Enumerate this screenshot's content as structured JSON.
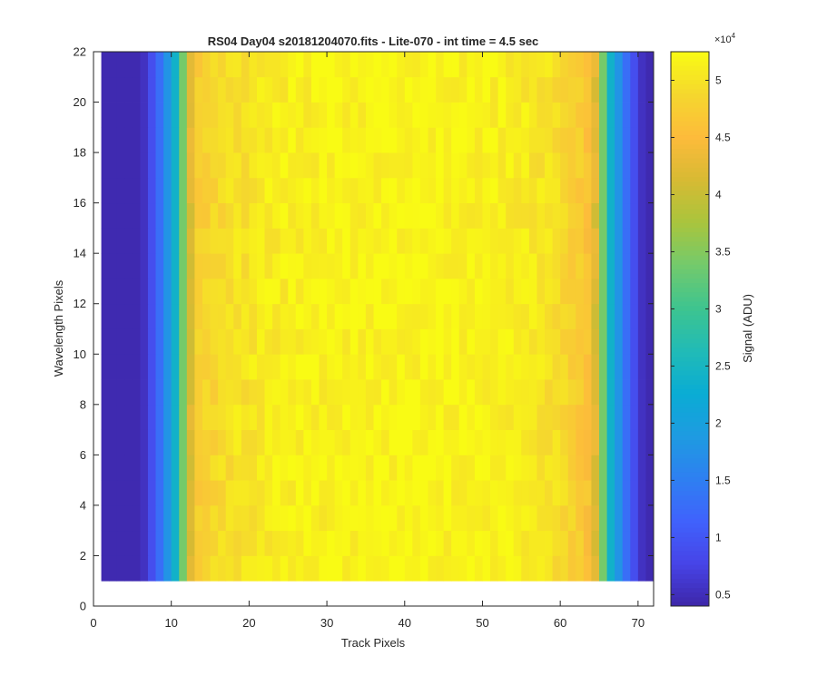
{
  "chart_data": {
    "type": "heatmap",
    "title": "RS04 Day04  s20181204070.fits - Lite-070 - int time = 4.5 sec",
    "xlabel": "Track Pixels",
    "ylabel": "Wavelength Pixels",
    "xlim": [
      0,
      72
    ],
    "ylim": [
      0,
      22
    ],
    "x_ticks": [
      0,
      10,
      20,
      30,
      40,
      50,
      60,
      70
    ],
    "y_ticks": [
      0,
      2,
      4,
      6,
      8,
      10,
      12,
      14,
      16,
      18,
      20,
      22
    ],
    "n_cols": 72,
    "n_rows": 21,
    "cell_x_start": 1,
    "cell_y_start": 1,
    "column_profile": [
      4500,
      4500,
      4500,
      4500,
      4500,
      5500,
      9000,
      13000,
      18000,
      24000,
      34000,
      42000,
      47500,
      48000,
      48500,
      49000,
      49500,
      50000,
      50000,
      50500,
      50500,
      51000,
      51000,
      51200,
      51300,
      51300,
      51400,
      51500,
      51500,
      51500,
      51600,
      51600,
      51700,
      51700,
      51800,
      51800,
      51800,
      51800,
      51800,
      51800,
      51800,
      51800,
      51800,
      51700,
      51700,
      51700,
      51600,
      51600,
      51500,
      51500,
      51400,
      51300,
      51200,
      51000,
      50800,
      50500,
      50200,
      49800,
      49400,
      48800,
      48000,
      47000,
      46000,
      42000,
      34000,
      24000,
      18000,
      13000,
      9000,
      5500,
      4500,
      4500
    ],
    "noise_amplitude": 1500,
    "colorbar": {
      "label": "Signal (ADU)",
      "exponent_label": "×10",
      "exponent": "4",
      "range": [
        4000,
        52500
      ],
      "ticks": [
        0.5,
        1,
        1.5,
        2,
        2.5,
        3,
        3.5,
        4,
        4.5,
        5
      ],
      "tick_multiplier": 10000,
      "colormap": [
        "#3e26a8",
        "#4744e7",
        "#4062fc",
        "#2e80f1",
        "#1e9be1",
        "#0aacd4",
        "#21bbb6",
        "#3ec48f",
        "#73ca6c",
        "#a9c53d",
        "#d7ba33",
        "#fdbb3b",
        "#f5d72e",
        "#f9fb14"
      ]
    }
  }
}
